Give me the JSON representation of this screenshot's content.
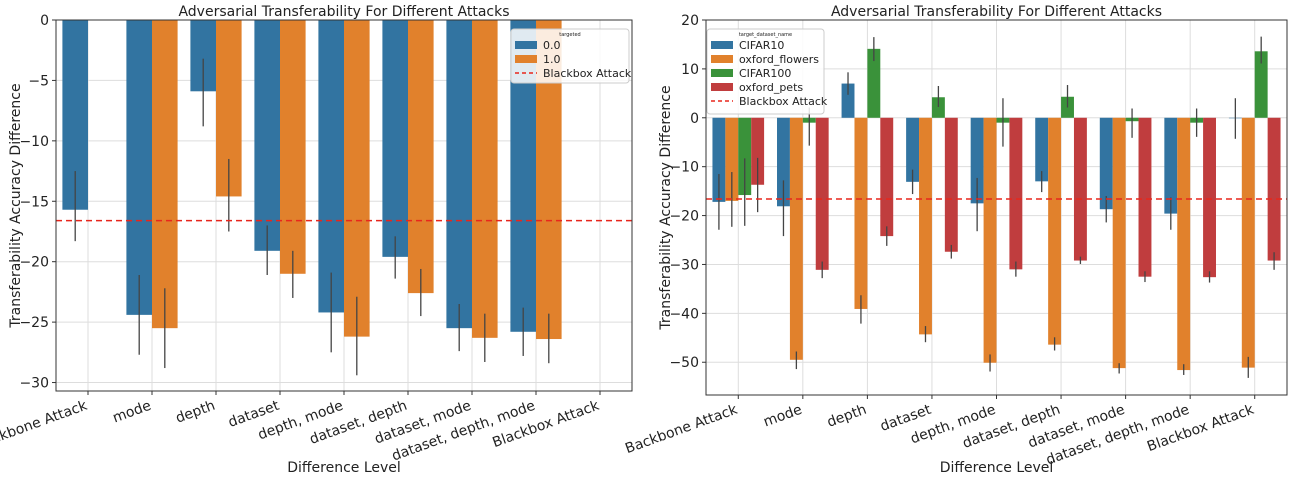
{
  "colors": {
    "blue": "#3274a1",
    "orange": "#e1812c",
    "green": "#3a923a",
    "red": "#c03d3e",
    "blackbox_line": "#e8261c",
    "grid": "#dddddd"
  },
  "chart_data": [
    {
      "type": "bar",
      "title": "Adversarial Transferability For Different Attacks",
      "xlabel": "Difference Level",
      "ylabel": "Transferability Accuracy Difference",
      "ylim": [
        -30.7,
        0
      ],
      "yticks": [
        0,
        -5,
        -10,
        -15,
        -20,
        -25,
        -30
      ],
      "ytick_labels": [
        "0",
        "−5",
        "−10",
        "−15",
        "−20",
        "−25",
        "−30"
      ],
      "grid": true,
      "legend_title": "targeted",
      "legend_position": "top-right",
      "categories": [
        "Backbone Attack",
        "mode",
        "depth",
        "dataset",
        "depth, mode",
        "dataset, depth",
        "dataset, mode",
        "dataset, depth, mode",
        "Blackbox Attack"
      ],
      "series": [
        {
          "name": "0.0",
          "color": "#3274a1",
          "values": [
            -15.7,
            -24.4,
            -5.9,
            -19.1,
            -24.2,
            -19.6,
            -25.5,
            -25.8,
            null
          ],
          "err_low": [
            -18.3,
            -27.7,
            -8.8,
            -21.1,
            -27.5,
            -21.4,
            -27.4,
            -27.8,
            null
          ],
          "err_high": [
            -12.5,
            -21.1,
            -3.2,
            -17.0,
            -20.9,
            -17.9,
            -23.5,
            -23.8,
            null
          ]
        },
        {
          "name": "1.0",
          "color": "#e1812c",
          "values": [
            null,
            -25.5,
            -14.6,
            -21.0,
            -26.2,
            -22.6,
            -26.3,
            -26.4,
            null
          ],
          "err_low": [
            null,
            -28.8,
            -17.5,
            -23.0,
            -29.4,
            -24.5,
            -28.3,
            -28.4,
            null
          ],
          "err_high": [
            null,
            -22.2,
            -11.5,
            -19.1,
            -22.9,
            -20.6,
            -24.3,
            -24.3,
            null
          ]
        }
      ],
      "reference_line": {
        "name": "Blackbox Attack",
        "value": -16.6
      }
    },
    {
      "type": "bar",
      "title": "Adversarial Transferability For Different Attacks",
      "xlabel": "Difference Level",
      "ylabel": "Transferability Accuracy Difference",
      "ylim": [
        -56.7,
        20
      ],
      "yticks": [
        20,
        10,
        0,
        -10,
        -20,
        -30,
        -40,
        -50
      ],
      "ytick_labels": [
        "20",
        "10",
        "0",
        "−10",
        "−20",
        "−30",
        "−40",
        "−50"
      ],
      "grid": true,
      "legend_title": "target_dataset_name",
      "legend_position": "top-left",
      "categories": [
        "Backbone Attack",
        "mode",
        "depth",
        "dataset",
        "depth, mode",
        "dataset, depth",
        "dataset, mode",
        "dataset, depth, mode",
        "Blackbox Attack"
      ],
      "series": [
        {
          "name": "CIFAR10",
          "color": "#3274a1",
          "values": [
            -17.2,
            -18.1,
            7.0,
            -13.1,
            -17.5,
            -13.0,
            -18.7,
            -19.6,
            0
          ],
          "err_low": [
            -22.9,
            -24.2,
            4.7,
            -15.6,
            -23.2,
            -15.2,
            -21.4,
            -22.9,
            -4.3
          ],
          "err_high": [
            -11.5,
            -12.8,
            9.3,
            -10.6,
            -12.3,
            -10.9,
            -16.0,
            -16.3,
            4.0
          ]
        },
        {
          "name": "oxford_flowers",
          "color": "#e1812c",
          "values": [
            -17.0,
            -49.5,
            -39.1,
            -44.3,
            -50.1,
            -46.4,
            -51.2,
            -51.6,
            -51.1
          ],
          "err_low": [
            -22.3,
            -51.4,
            -42.1,
            -45.9,
            -51.9,
            -47.6,
            -52.3,
            -52.6,
            -53.2
          ],
          "err_high": [
            -11.1,
            -47.8,
            -36.3,
            -42.6,
            -48.4,
            -44.9,
            -50.2,
            -50.4,
            -48.9
          ]
        },
        {
          "name": "CIFAR100",
          "color": "#3a923a",
          "values": [
            -15.8,
            -1.0,
            14.1,
            4.2,
            -1.0,
            4.3,
            -0.7,
            -1.0,
            13.6
          ],
          "err_low": [
            -22.1,
            -5.7,
            11.6,
            2.2,
            -5.9,
            2.1,
            -4.1,
            -3.9,
            11.1
          ],
          "err_high": [
            -8.3,
            2.1,
            16.5,
            6.5,
            4.0,
            6.7,
            1.9,
            1.9,
            16.6
          ]
        },
        {
          "name": "oxford_pets",
          "color": "#c03d3e",
          "values": [
            -13.7,
            -31.1,
            -24.2,
            -27.4,
            -31.0,
            -29.2,
            -32.5,
            -32.6,
            -29.2
          ],
          "err_low": [
            -19.3,
            -32.8,
            -26.2,
            -28.8,
            -32.5,
            -29.9,
            -33.6,
            -33.7,
            -31.1
          ],
          "err_high": [
            -8.2,
            -29.4,
            -22.2,
            -26.0,
            -29.4,
            -28.4,
            -31.4,
            -31.4,
            -27.5
          ]
        }
      ],
      "reference_line": {
        "name": "Blackbox Attack",
        "value": -16.6
      }
    }
  ]
}
